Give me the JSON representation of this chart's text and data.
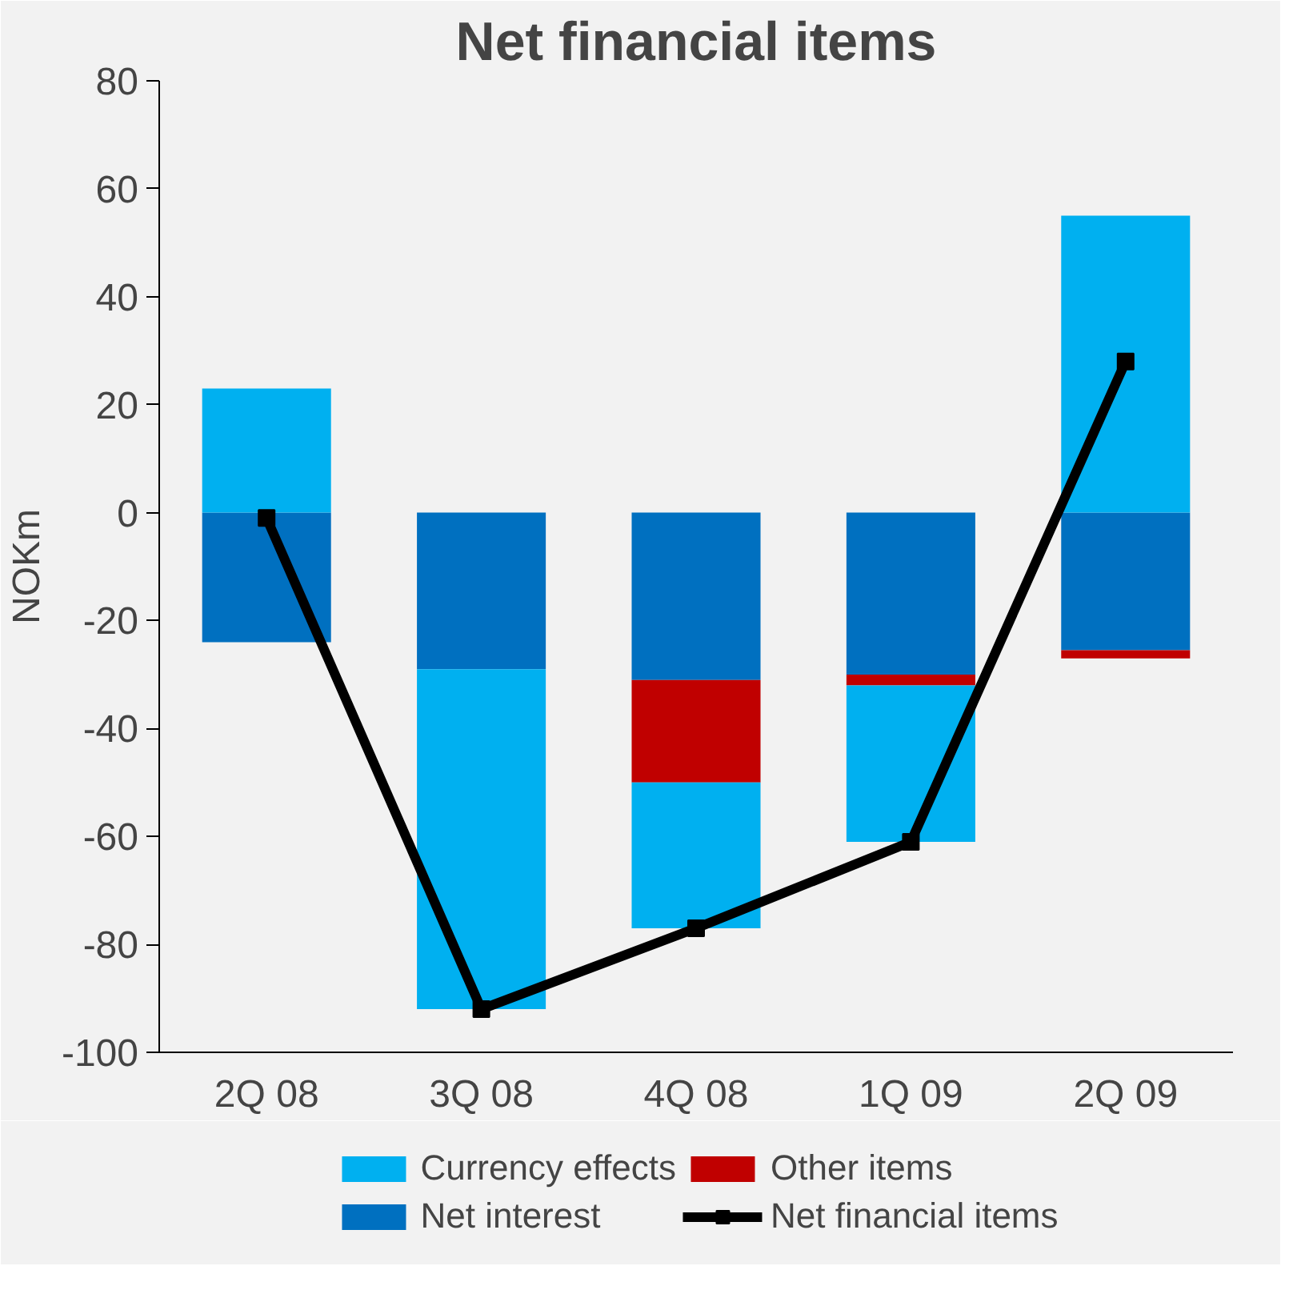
{
  "chart_data": {
    "type": "bar",
    "title": "Net financial items",
    "ylabel": "NOKm",
    "categories": [
      "2Q 08",
      "3Q 08",
      "4Q 08",
      "1Q 09",
      "2Q 09"
    ],
    "stacked": true,
    "ylim": [
      -100,
      80
    ],
    "yticks": [
      -100,
      -80,
      -60,
      -40,
      -20,
      0,
      20,
      40,
      60,
      80
    ],
    "grid": false,
    "legend": "bottom",
    "marker": "square",
    "series": [
      {
        "name": "Net interest",
        "color": "#0070c0",
        "values": [
          -24,
          -29,
          -31,
          -30,
          -25.5
        ]
      },
      {
        "name": "Other items",
        "color": "#c00000",
        "values": [
          0,
          0,
          -19,
          -2,
          -1.5
        ]
      },
      {
        "name": "Currency effects",
        "color": "#00b0f0",
        "values": [
          23,
          -63,
          -27,
          -29,
          55
        ]
      },
      {
        "name": "Net financial items",
        "type": "line",
        "color": "#000000",
        "values": [
          -1,
          -92,
          -77,
          -61,
          28
        ]
      }
    ]
  }
}
